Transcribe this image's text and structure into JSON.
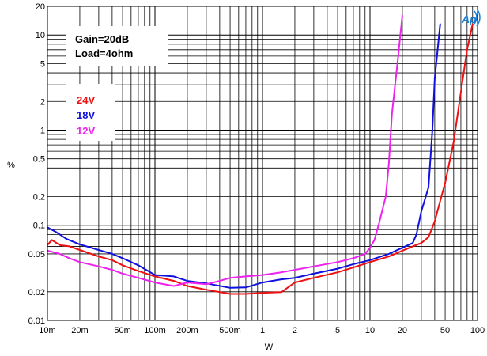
{
  "chart_data": {
    "type": "line",
    "title": "",
    "xlabel": "W",
    "ylabel": "%",
    "x_scale": "log",
    "y_scale": "log",
    "xlim": [
      0.01,
      100
    ],
    "ylim": [
      0.01,
      20
    ],
    "grid": true,
    "x_ticks": [
      {
        "value": 0.01,
        "label": "10m"
      },
      {
        "value": 0.02,
        "label": "20m"
      },
      {
        "value": 0.05,
        "label": "50m"
      },
      {
        "value": 0.1,
        "label": "100m"
      },
      {
        "value": 0.2,
        "label": "200m"
      },
      {
        "value": 0.5,
        "label": "500m"
      },
      {
        "value": 1,
        "label": "1"
      },
      {
        "value": 2,
        "label": "2"
      },
      {
        "value": 5,
        "label": "5"
      },
      {
        "value": 10,
        "label": "10"
      },
      {
        "value": 20,
        "label": "20"
      },
      {
        "value": 50,
        "label": "50"
      },
      {
        "value": 100,
        "label": "100"
      }
    ],
    "y_ticks": [
      {
        "value": 0.01,
        "label": "0.01"
      },
      {
        "value": 0.02,
        "label": "0.02"
      },
      {
        "value": 0.05,
        "label": "0.05"
      },
      {
        "value": 0.1,
        "label": "0.1"
      },
      {
        "value": 0.2,
        "label": "0.2"
      },
      {
        "value": 0.5,
        "label": "0.5"
      },
      {
        "value": 1,
        "label": "1"
      },
      {
        "value": 2,
        "label": "2"
      },
      {
        "value": 5,
        "label": "5"
      },
      {
        "value": 10,
        "label": "10"
      },
      {
        "value": 20,
        "label": "20"
      }
    ],
    "conditions": [
      "Gain=20dB",
      "Load=4ohm"
    ],
    "legend_placement": "upper-left",
    "series": [
      {
        "name": "24V",
        "color": "#ee1111",
        "points": [
          [
            0.01,
            0.062
          ],
          [
            0.011,
            0.07
          ],
          [
            0.013,
            0.062
          ],
          [
            0.016,
            0.06
          ],
          [
            0.02,
            0.055
          ],
          [
            0.03,
            0.047
          ],
          [
            0.04,
            0.043
          ],
          [
            0.05,
            0.038
          ],
          [
            0.07,
            0.033
          ],
          [
            0.1,
            0.029
          ],
          [
            0.15,
            0.026
          ],
          [
            0.2,
            0.023
          ],
          [
            0.3,
            0.021
          ],
          [
            0.5,
            0.019
          ],
          [
            0.7,
            0.019
          ],
          [
            1,
            0.0195
          ],
          [
            1.5,
            0.0198
          ],
          [
            2,
            0.025
          ],
          [
            3,
            0.028
          ],
          [
            5,
            0.032
          ],
          [
            7,
            0.036
          ],
          [
            10,
            0.041
          ],
          [
            15,
            0.047
          ],
          [
            20,
            0.054
          ],
          [
            25,
            0.06
          ],
          [
            30,
            0.065
          ],
          [
            35,
            0.075
          ],
          [
            40,
            0.11
          ],
          [
            45,
            0.18
          ],
          [
            50,
            0.28
          ],
          [
            60,
            0.75
          ],
          [
            70,
            2.5
          ],
          [
            80,
            7
          ],
          [
            90,
            13
          ]
        ]
      },
      {
        "name": "18V",
        "color": "#1111dd",
        "points": [
          [
            0.01,
            0.095
          ],
          [
            0.012,
            0.085
          ],
          [
            0.015,
            0.072
          ],
          [
            0.02,
            0.063
          ],
          [
            0.03,
            0.055
          ],
          [
            0.04,
            0.05
          ],
          [
            0.05,
            0.045
          ],
          [
            0.07,
            0.038
          ],
          [
            0.1,
            0.03
          ],
          [
            0.15,
            0.029
          ],
          [
            0.2,
            0.026
          ],
          [
            0.3,
            0.0245
          ],
          [
            0.5,
            0.022
          ],
          [
            0.7,
            0.0222
          ],
          [
            1,
            0.025
          ],
          [
            1.5,
            0.027
          ],
          [
            2,
            0.028
          ],
          [
            3,
            0.031
          ],
          [
            5,
            0.035
          ],
          [
            7,
            0.039
          ],
          [
            10,
            0.043
          ],
          [
            15,
            0.05
          ],
          [
            20,
            0.058
          ],
          [
            25,
            0.065
          ],
          [
            27,
            0.08
          ],
          [
            30,
            0.14
          ],
          [
            35,
            0.25
          ],
          [
            38,
            1.0
          ],
          [
            40,
            3.5
          ],
          [
            45,
            13
          ]
        ]
      },
      {
        "name": "12V",
        "color": "#ee22ee",
        "points": [
          [
            0.01,
            0.054
          ],
          [
            0.013,
            0.05
          ],
          [
            0.016,
            0.045
          ],
          [
            0.02,
            0.041
          ],
          [
            0.03,
            0.037
          ],
          [
            0.04,
            0.034
          ],
          [
            0.05,
            0.031
          ],
          [
            0.07,
            0.028
          ],
          [
            0.1,
            0.025
          ],
          [
            0.15,
            0.023
          ],
          [
            0.2,
            0.025
          ],
          [
            0.3,
            0.024
          ],
          [
            0.4,
            0.026
          ],
          [
            0.5,
            0.028
          ],
          [
            0.7,
            0.029
          ],
          [
            1,
            0.03
          ],
          [
            1.5,
            0.032
          ],
          [
            2,
            0.034
          ],
          [
            3,
            0.037
          ],
          [
            5,
            0.041
          ],
          [
            7,
            0.045
          ],
          [
            9,
            0.05
          ],
          [
            10,
            0.058
          ],
          [
            11,
            0.07
          ],
          [
            12,
            0.1
          ],
          [
            14,
            0.2
          ],
          [
            15,
            0.45
          ],
          [
            16,
            1.5
          ],
          [
            18,
            5
          ],
          [
            20,
            16
          ]
        ]
      }
    ]
  },
  "logo": {
    "text": "Ap",
    "color": "#1a7fd4"
  }
}
